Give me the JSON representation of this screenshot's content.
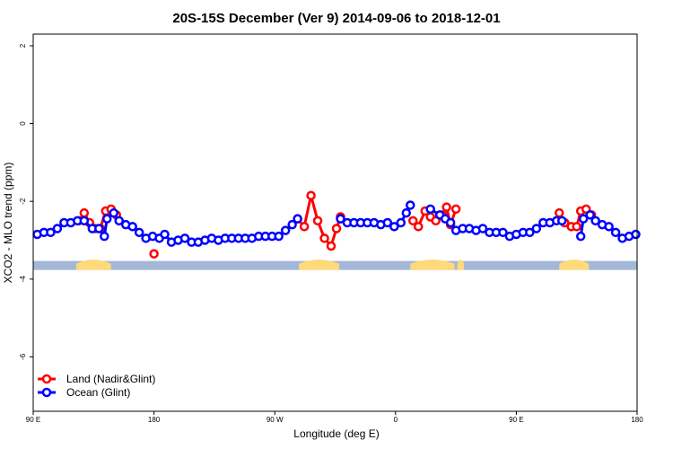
{
  "chart_data": {
    "type": "line",
    "title": "20S-15S December (Ver 9)   2014-09-06 to 2018-12-01",
    "xlabel": "Longitude (deg E)",
    "ylabel": "XCO2 - MLO trend (ppm)",
    "xlim": [
      90,
      540
    ],
    "ylim": [
      -7.4,
      2.3
    ],
    "x_ticks": [
      {
        "value": 90,
        "label": "90 E"
      },
      {
        "value": 180,
        "label": "180"
      },
      {
        "value": 270,
        "label": "90 W"
      },
      {
        "value": 360,
        "label": "0"
      },
      {
        "value": 450,
        "label": "90 E"
      },
      {
        "value": 540,
        "label": "180"
      }
    ],
    "y_ticks": [
      {
        "value": 2,
        "label": "2"
      },
      {
        "value": 0,
        "label": "0"
      },
      {
        "value": -2,
        "label": "-2"
      },
      {
        "value": -4,
        "label": "-4"
      },
      {
        "value": -6,
        "label": "-6"
      }
    ],
    "legend_position": "bottom-left",
    "colors": {
      "land": "#ff0000",
      "ocean": "#0000ff",
      "ocean_band": "#a3b8d8",
      "land_band": "#ffd97a"
    },
    "surface_band": {
      "y": -3.65,
      "land_segments": [
        [
          122,
          148
        ],
        [
          288,
          318
        ],
        [
          371,
          404
        ],
        [
          406,
          411
        ],
        [
          482,
          504
        ]
      ]
    },
    "series": [
      {
        "name": "Land (Nadir&Glint)",
        "color": "#ff0000",
        "segments": [
          [
            [
              124,
              -2.5
            ],
            [
              128,
              -2.3
            ],
            [
              132,
              -2.55
            ],
            [
              136,
              -2.7
            ],
            [
              140,
              -2.7
            ],
            [
              144,
              -2.25
            ],
            [
              148,
              -2.2
            ],
            [
              152,
              -2.35
            ]
          ],
          [
            [
              180,
              -3.35
            ]
          ],
          [
            [
              287,
              -2.45
            ],
            [
              292,
              -2.65
            ],
            [
              297,
              -1.85
            ],
            [
              302,
              -2.5
            ],
            [
              307,
              -2.95
            ],
            [
              312,
              -3.15
            ],
            [
              316,
              -2.7
            ],
            [
              319,
              -2.4
            ]
          ],
          [
            [
              373,
              -2.5
            ],
            [
              377,
              -2.65
            ],
            [
              382,
              -2.25
            ],
            [
              386,
              -2.4
            ],
            [
              390,
              -2.5
            ],
            [
              395,
              -2.35
            ],
            [
              398,
              -2.15
            ],
            [
              401,
              -2.6
            ],
            [
              405,
              -2.2
            ]
          ],
          [
            [
              482,
              -2.3
            ],
            [
              486,
              -2.55
            ],
            [
              491,
              -2.65
            ],
            [
              495,
              -2.65
            ],
            [
              498,
              -2.25
            ],
            [
              502,
              -2.2
            ],
            [
              506,
              -2.35
            ]
          ]
        ]
      },
      {
        "name": "Ocean (Glint)",
        "color": "#0000ff",
        "segments": [
          [
            [
              93,
              -2.85
            ],
            [
              98,
              -2.8
            ],
            [
              103,
              -2.8
            ],
            [
              108,
              -2.7
            ],
            [
              113,
              -2.55
            ],
            [
              118,
              -2.55
            ],
            [
              123,
              -2.5
            ],
            [
              128,
              -2.5
            ],
            [
              134,
              -2.7
            ],
            [
              139,
              -2.7
            ],
            [
              143,
              -2.9
            ],
            [
              145,
              -2.45
            ],
            [
              150,
              -2.3
            ],
            [
              154,
              -2.5
            ],
            [
              159,
              -2.6
            ],
            [
              164,
              -2.65
            ],
            [
              169,
              -2.8
            ],
            [
              174,
              -2.95
            ],
            [
              179,
              -2.9
            ],
            [
              184,
              -2.95
            ],
            [
              188,
              -2.85
            ],
            [
              193,
              -3.05
            ],
            [
              198,
              -3.0
            ],
            [
              203,
              -2.95
            ],
            [
              208,
              -3.05
            ],
            [
              213,
              -3.05
            ],
            [
              218,
              -3.0
            ],
            [
              223,
              -2.95
            ],
            [
              228,
              -3.0
            ],
            [
              233,
              -2.95
            ],
            [
              238,
              -2.95
            ],
            [
              243,
              -2.95
            ],
            [
              248,
              -2.95
            ],
            [
              253,
              -2.95
            ],
            [
              258,
              -2.9
            ],
            [
              263,
              -2.9
            ],
            [
              268,
              -2.9
            ],
            [
              273,
              -2.9
            ],
            [
              278,
              -2.75
            ],
            [
              283,
              -2.6
            ],
            [
              287,
              -2.45
            ]
          ],
          [
            [
              319,
              -2.45
            ],
            [
              324,
              -2.55
            ],
            [
              329,
              -2.55
            ],
            [
              334,
              -2.55
            ],
            [
              339,
              -2.55
            ],
            [
              344,
              -2.55
            ],
            [
              349,
              -2.6
            ],
            [
              354,
              -2.55
            ],
            [
              359,
              -2.65
            ],
            [
              364,
              -2.55
            ],
            [
              368,
              -2.3
            ],
            [
              371,
              -2.1
            ]
          ],
          [
            [
              386,
              -2.2
            ],
            [
              393,
              -2.35
            ],
            [
              397,
              -2.45
            ],
            [
              401,
              -2.55
            ],
            [
              405,
              -2.75
            ],
            [
              410,
              -2.7
            ],
            [
              415,
              -2.7
            ],
            [
              420,
              -2.75
            ],
            [
              425,
              -2.7
            ],
            [
              430,
              -2.8
            ],
            [
              435,
              -2.8
            ],
            [
              440,
              -2.8
            ],
            [
              445,
              -2.9
            ],
            [
              450,
              -2.85
            ],
            [
              455,
              -2.8
            ],
            [
              460,
              -2.8
            ],
            [
              465,
              -2.7
            ],
            [
              470,
              -2.55
            ],
            [
              475,
              -2.55
            ],
            [
              480,
              -2.5
            ],
            [
              484,
              -2.5
            ]
          ],
          [
            [
              498,
              -2.9
            ],
            [
              500,
              -2.45
            ],
            [
              505,
              -2.35
            ],
            [
              509,
              -2.5
            ],
            [
              514,
              -2.6
            ],
            [
              519,
              -2.65
            ],
            [
              524,
              -2.8
            ],
            [
              529,
              -2.95
            ],
            [
              534,
              -2.9
            ],
            [
              539,
              -2.85
            ]
          ]
        ]
      }
    ]
  }
}
